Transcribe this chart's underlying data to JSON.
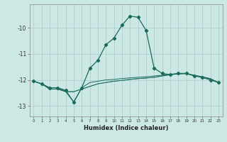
{
  "xlabel": "Humidex (Indice chaleur)",
  "background_color": "#cce8e4",
  "grid_color": "#aacccc",
  "line_color": "#1a6b5a",
  "xlim": [
    -0.5,
    23.5
  ],
  "ylim": [
    -13.4,
    -9.1
  ],
  "xticks": [
    0,
    1,
    2,
    3,
    4,
    5,
    6,
    7,
    8,
    9,
    10,
    11,
    12,
    13,
    14,
    15,
    16,
    17,
    18,
    19,
    20,
    21,
    22,
    23
  ],
  "yticks": [
    -13,
    -12,
    -11,
    -10
  ],
  "series": [
    {
      "y": [
        -12.05,
        -12.15,
        -12.3,
        -12.3,
        -12.4,
        -12.85,
        -12.3,
        -11.55,
        -11.25,
        -10.65,
        -10.4,
        -9.9,
        -9.55,
        -9.6,
        -10.1,
        -11.55,
        -11.75,
        -11.8,
        -11.75,
        -11.75,
        -11.85,
        -11.9,
        -12.0,
        -12.1
      ],
      "marker": true,
      "linewidth": 0.9
    },
    {
      "y": [
        -12.05,
        -12.15,
        -12.3,
        -12.3,
        -12.45,
        -12.85,
        -12.3,
        -12.1,
        -12.05,
        -12.0,
        -11.98,
        -11.95,
        -11.92,
        -11.9,
        -11.88,
        -11.85,
        -11.82,
        -11.78,
        -11.76,
        -11.75,
        -11.82,
        -11.88,
        -11.95,
        -12.1
      ],
      "marker": false,
      "linewidth": 0.7
    },
    {
      "y": [
        -12.05,
        -12.15,
        -12.35,
        -12.35,
        -12.45,
        -12.45,
        -12.35,
        -12.25,
        -12.15,
        -12.1,
        -12.05,
        -12.02,
        -11.98,
        -11.95,
        -11.93,
        -11.9,
        -11.85,
        -11.8,
        -11.77,
        -11.76,
        -11.83,
        -11.89,
        -11.96,
        -12.1
      ],
      "marker": false,
      "linewidth": 0.7
    },
    {
      "y": [
        -12.05,
        -12.15,
        -12.35,
        -12.35,
        -12.45,
        -12.45,
        -12.35,
        -12.25,
        -12.15,
        -12.1,
        -12.05,
        -12.02,
        -11.98,
        -11.95,
        -11.93,
        -11.9,
        -11.85,
        -11.8,
        -11.77,
        -11.76,
        -11.83,
        -11.89,
        -11.96,
        -12.1
      ],
      "marker": false,
      "linewidth": 0.5
    }
  ]
}
